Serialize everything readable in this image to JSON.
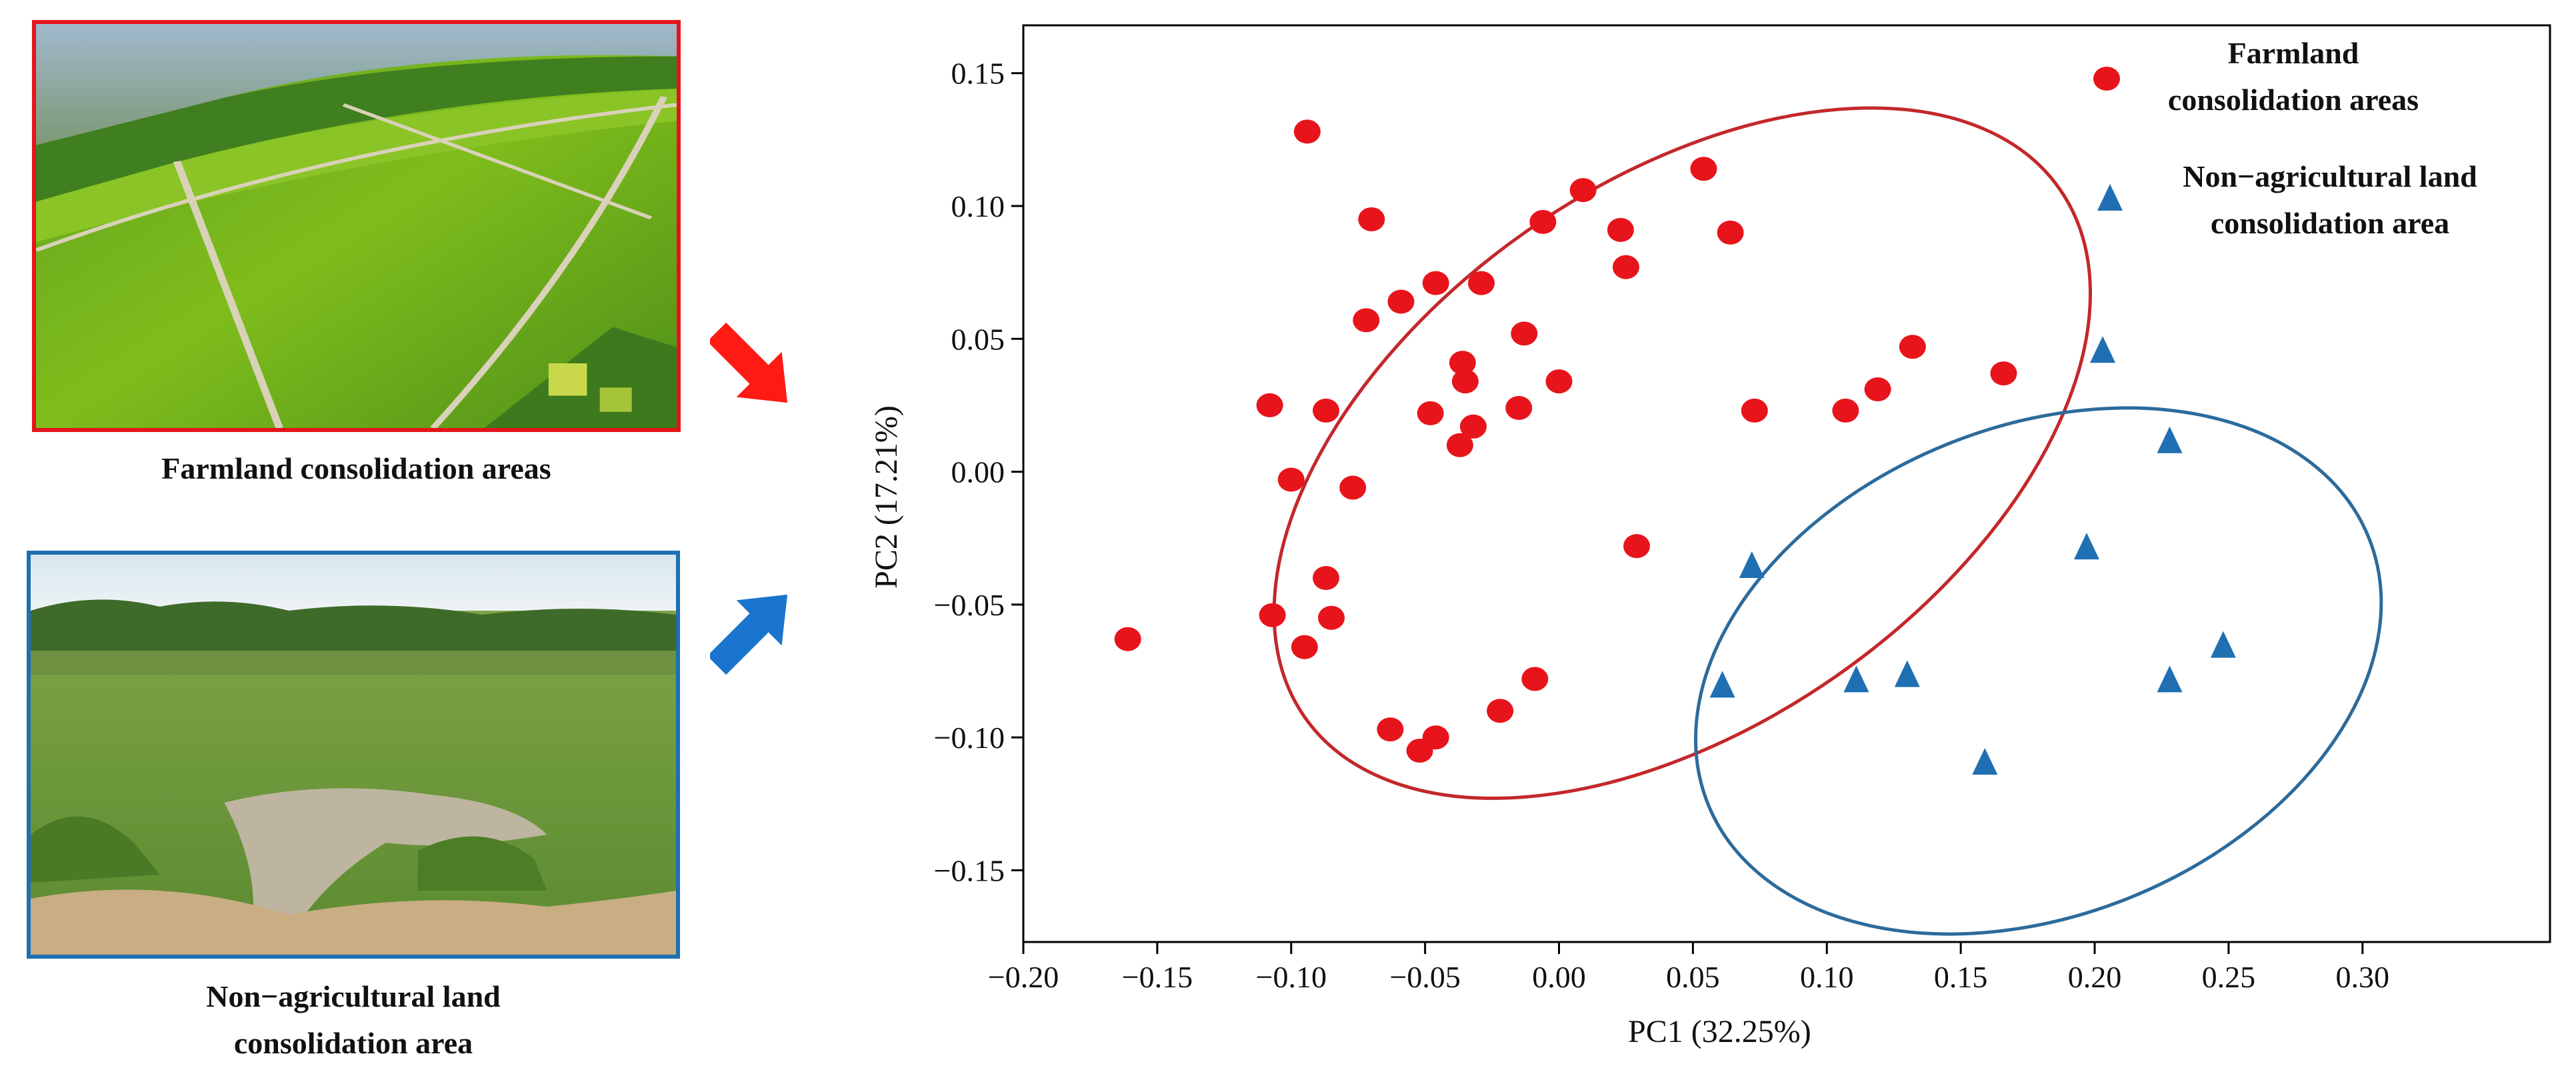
{
  "photos": {
    "farm_caption": "Farmland consolidation areas",
    "nonag_caption_line1": "Non−agricultural land",
    "nonag_caption_line2": "consolidation area",
    "farm_border_color": "#e5141b",
    "nonag_border_color": "#1f6fb2"
  },
  "chart_data": {
    "type": "scatter",
    "xlabel": "PC1 (32.25%)",
    "ylabel": "PC2 (17.21%)",
    "xlim": [
      -0.2,
      0.37
    ],
    "ylim": [
      -0.177,
      0.168
    ],
    "xticks": [
      -0.2,
      -0.15,
      -0.1,
      -0.05,
      0.0,
      0.05,
      0.1,
      0.15,
      0.2,
      0.25,
      0.3
    ],
    "xtick_labels": [
      "−0.20",
      "−0.15",
      "−0.10",
      "−0.05",
      "0.00",
      "0.05",
      "0.10",
      "0.15",
      "0.20",
      "0.25",
      "0.30"
    ],
    "yticks": [
      -0.15,
      -0.1,
      -0.05,
      0.0,
      0.05,
      0.1,
      0.15
    ],
    "ytick_labels": [
      "−0.15",
      "−0.10",
      "−0.05",
      "0.00",
      "0.05",
      "0.10",
      "0.15"
    ],
    "grid": false,
    "legend_position": "top-right",
    "series": [
      {
        "name": "Farmland consolidation areas",
        "legend_lines": [
          "Farmland",
          "consolidation areas"
        ],
        "color": "#e8141b",
        "marker": "circle",
        "points": [
          [
            -0.094,
            0.128
          ],
          [
            -0.07,
            0.095
          ],
          [
            0.054,
            0.114
          ],
          [
            0.009,
            0.106
          ],
          [
            -0.006,
            0.094
          ],
          [
            0.023,
            0.091
          ],
          [
            0.064,
            0.09
          ],
          [
            0.025,
            0.077
          ],
          [
            -0.046,
            0.071
          ],
          [
            -0.029,
            0.071
          ],
          [
            -0.059,
            0.064
          ],
          [
            -0.072,
            0.057
          ],
          [
            -0.013,
            0.052
          ],
          [
            0.132,
            0.047
          ],
          [
            -0.036,
            0.041
          ],
          [
            -0.035,
            0.034
          ],
          [
            0.0,
            0.034
          ],
          [
            0.166,
            0.037
          ],
          [
            -0.108,
            0.025
          ],
          [
            -0.087,
            0.023
          ],
          [
            -0.048,
            0.022
          ],
          [
            -0.015,
            0.024
          ],
          [
            0.073,
            0.023
          ],
          [
            0.107,
            0.023
          ],
          [
            0.119,
            0.031
          ],
          [
            -0.032,
            0.017
          ],
          [
            -0.037,
            0.01
          ],
          [
            -0.1,
            -0.003
          ],
          [
            -0.077,
            -0.006
          ],
          [
            0.029,
            -0.028
          ],
          [
            -0.087,
            -0.04
          ],
          [
            -0.107,
            -0.054
          ],
          [
            -0.085,
            -0.055
          ],
          [
            -0.161,
            -0.063
          ],
          [
            -0.095,
            -0.066
          ],
          [
            -0.009,
            -0.078
          ],
          [
            -0.022,
            -0.09
          ],
          [
            -0.063,
            -0.097
          ],
          [
            -0.046,
            -0.1
          ],
          [
            -0.052,
            -0.105
          ]
        ],
        "ellipse": {
          "cx": 0.046,
          "cy": 0.007,
          "rx": 0.172,
          "ry": 0.102,
          "angle_deg": 35
        }
      },
      {
        "name": "Non−agricultural land consolidation area",
        "legend_lines": [
          "Non−agricultural land",
          "consolidation area"
        ],
        "color": "#1f6fb2",
        "marker": "triangle",
        "points": [
          [
            0.203,
            0.045
          ],
          [
            0.228,
            0.011
          ],
          [
            0.197,
            -0.029
          ],
          [
            0.072,
            -0.036
          ],
          [
            0.248,
            -0.066
          ],
          [
            0.061,
            -0.081
          ],
          [
            0.111,
            -0.079
          ],
          [
            0.13,
            -0.077
          ],
          [
            0.228,
            -0.079
          ],
          [
            0.159,
            -0.11
          ]
        ],
        "ellipse": {
          "cx": 0.179,
          "cy": -0.075,
          "rx": 0.133,
          "ry": 0.092,
          "angle_deg": 22
        }
      }
    ]
  }
}
